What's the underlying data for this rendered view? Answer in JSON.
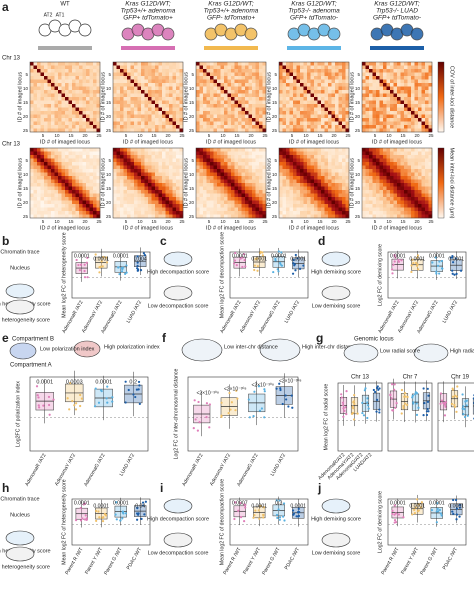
{
  "panel_a": {
    "letter": "a",
    "row_label": "Chr 13",
    "columns": [
      {
        "lines": [
          "WT"
        ],
        "cell_labels": [
          "AT2",
          "AT1"
        ]
      },
      {
        "lines": [
          "Kras G12D/WT;",
          "Trp53+/+ adenoma",
          "GFP+ tdTomato+"
        ]
      },
      {
        "lines": [
          "Kras G12D/WT;",
          "Trp53+/+ adenoma",
          "GFP- tdTomato+"
        ]
      },
      {
        "lines": [
          "Kras G12D/WT;",
          "Trp53-/- adenoma",
          "GFP+ tdTomato-"
        ]
      },
      {
        "lines": [
          "Kras G12D/WT;",
          "Trp53-/- LUAD",
          "GFP+ tdTomato-"
        ]
      }
    ],
    "axis_label": "ID # of imaged locus",
    "ticks": [
      5,
      10,
      15,
      20,
      25
    ],
    "colorbar_labels": [
      "COV of inter-loci distance",
      "Mean inter-loci distance (µm)"
    ]
  },
  "panels": [
    {
      "letter": "b",
      "legend": [
        "Chromatin trace",
        "Nucleus",
        "High heterogeneity score",
        "Low heterogeneity score"
      ],
      "ylabel": "Mean log2 FC of heterogeneity score",
      "pvalues": [
        "0.0001",
        "0.0001",
        "0.0001",
        "0.004"
      ],
      "groups": [
        "AdenomaR /AT2",
        "AdenomaY /AT2",
        "AdenomaG /AT2",
        "LUAD /AT2"
      ]
    },
    {
      "letter": "c",
      "legend": [
        "High decompaction score",
        "Low decompaction score"
      ],
      "ylabel": "Mean log2 FC of decompaction score",
      "pvalues": [
        "0.0001",
        "0.0001",
        "0.0001",
        "0.0001"
      ],
      "groups": [
        "AdenomaR /AT2",
        "AdenomaY /AT2",
        "AdenomaG /AT2",
        "LUAD /AT2"
      ]
    },
    {
      "letter": "d",
      "legend": [
        "High demixing score",
        "Low demixing score"
      ],
      "ylabel": "Log2 FC of demixing score",
      "pvalues": [
        "0.0001",
        "0.0001",
        "0.0001",
        "0.0001"
      ],
      "groups": [
        "AdenomaR /AT2",
        "AdenomaY /AT2",
        "AdenomaG /AT2",
        "LUAD /AT2"
      ]
    },
    {
      "letter": "e",
      "legend": [
        "Compartment B",
        "Compartment A",
        "Low polarization index",
        "High polarization index"
      ],
      "ylabel": "Log2FC of polarization index",
      "pvalues": [
        "0.0001",
        "0.0003",
        "0.0001",
        "0.2"
      ],
      "groups": [
        "AdenomaR /AT2",
        "AdenomaY /AT2",
        "AdenomaG /AT2",
        "LUAD /AT2"
      ]
    },
    {
      "letter": "f",
      "legend": [
        "Low inter-chr distance",
        "High inter-chr distance"
      ],
      "ylabel": "Log2 FC of inter-chromosomal distance",
      "pvalues": [
        "<2×10⁻³⁰⁸",
        "<2×10⁻³⁰⁸",
        "<2×10⁻³⁰⁸",
        "<2×10⁻³⁰⁸"
      ],
      "groups": [
        "AdenomaR /AT2",
        "AdenomaY /AT2",
        "AdenomaG /AT2",
        "LUAD /AT2"
      ]
    },
    {
      "letter": "g",
      "legend": [
        "Genomic locus",
        "Low radial score",
        "High radial score"
      ],
      "ylabel": "Mean log2 FC of radial score",
      "subplots": [
        "Chr 13",
        "Chr 7",
        "Chr 19"
      ],
      "groups": [
        "AdenomaR/AT2",
        "AdenomaY/AT2",
        "AdenomaG/AT2",
        "LUAD/AT2"
      ]
    },
    {
      "letter": "h",
      "legend": [
        "Chromatin trace",
        "Nucleus",
        "High heterogeneity score",
        "Low heterogeneity score"
      ],
      "ylabel": "Mean log2 FC of heterogeneity score",
      "pvalues": [
        "0.0001",
        "0.0001",
        "0.0001",
        "0.04"
      ],
      "groups": [
        "Parent R /WT",
        "Parent Y /WT",
        "Parent G /WT",
        "PDAC /WT"
      ]
    },
    {
      "letter": "i",
      "legend": [
        "High decompaction score",
        "Low decompaction score"
      ],
      "ylabel": "Mean log2 FC of decompaction score",
      "pvalues": [
        "0.0007",
        "0.0001",
        "0.3",
        "0.0001"
      ],
      "groups": [
        "Parent R /WT",
        "Parent Y /WT",
        "Parent G /WT",
        "PDAC /WT"
      ]
    },
    {
      "letter": "j",
      "legend": [
        "High demixing score",
        "Low demixing score"
      ],
      "ylabel": "Log2 FC of demixing score",
      "pvalues": [
        "0.0001",
        "0.0001",
        "0.0001",
        "0.0001"
      ],
      "groups": [
        "Parent R /WT",
        "Parent Y /WT",
        "Parent G /WT",
        "PDAC /WT"
      ]
    }
  ]
}
